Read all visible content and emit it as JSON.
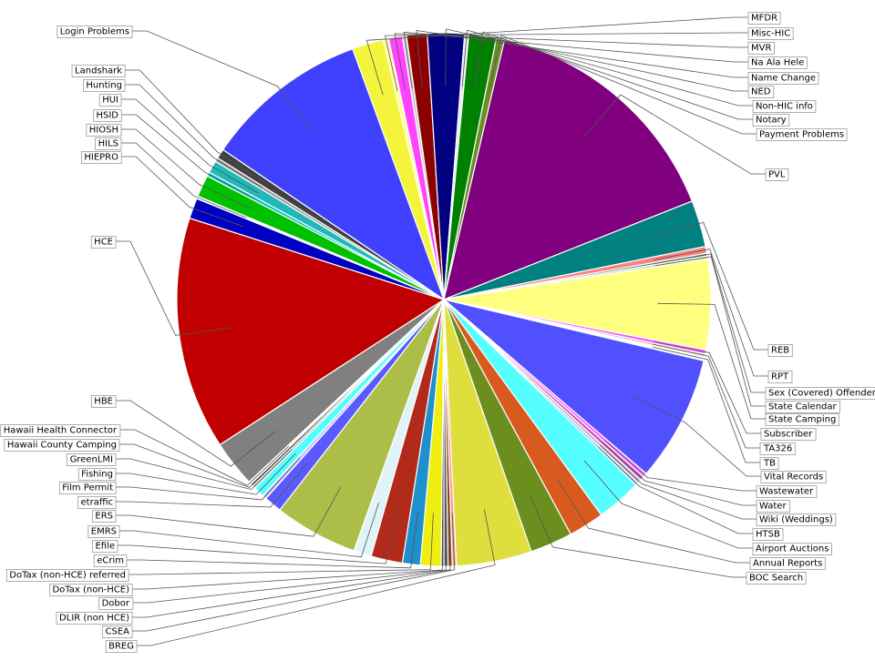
{
  "chart_data": {
    "type": "pie",
    "title": "",
    "start_angle_deg": -20,
    "direction": "clockwise",
    "slices": [
      {
        "label": "MFDR",
        "value": 2.3,
        "color": "#f4f43c"
      },
      {
        "label": "Misc-HIC",
        "value": 0.4,
        "color": "#ffff99"
      },
      {
        "label": "MVR",
        "value": 1.0,
        "color": "#ff44ff"
      },
      {
        "label": "Na Ala Hele",
        "value": 0.3,
        "color": "#cccccc"
      },
      {
        "label": "Name Change",
        "value": 1.5,
        "color": "#8b0000"
      },
      {
        "label": "NED",
        "value": 2.7,
        "color": "#000080"
      },
      {
        "label": "Non-HIC info",
        "value": 0.3,
        "color": "#e8e8e8"
      },
      {
        "label": "Notary",
        "value": 2.0,
        "color": "#008000"
      },
      {
        "label": "Payment Problems",
        "value": 0.6,
        "color": "#6b8e23"
      },
      {
        "label": "PVL",
        "value": 18.5,
        "color": "#800080"
      },
      {
        "label": "REB",
        "value": 3.4,
        "color": "#008080"
      },
      {
        "label": "RPT",
        "value": 0.5,
        "color": "#ff7f7f"
      },
      {
        "label": "Sex (Covered) Offender",
        "value": 0.2,
        "color": "#2e8b57"
      },
      {
        "label": "State Calendar",
        "value": 0.2,
        "color": "#cccccc"
      },
      {
        "label": "State Camping",
        "value": 6.6,
        "color": "#ffff80"
      },
      {
        "label": "Subscriber",
        "value": 0.3,
        "color": "#ff55ff"
      },
      {
        "label": "TA326",
        "value": 0.2,
        "color": "#bbbbbb"
      },
      {
        "label": "TB",
        "value": 0.3,
        "color": "#ffffff"
      },
      {
        "label": "Vital Records",
        "value": 9.2,
        "color": "#5050ff"
      },
      {
        "label": "Wastewater",
        "value": 0.3,
        "color": "#ff66ff"
      },
      {
        "label": "Water",
        "value": 0.3,
        "color": "#cc44cc"
      },
      {
        "label": "Wiki (Weddings)",
        "value": 0.3,
        "color": "#bfbfbf"
      },
      {
        "label": "HTSB",
        "value": 0.2,
        "color": "#a0a0ff"
      },
      {
        "label": "Airport Auctions",
        "value": 3.3,
        "color": "#55ffff"
      },
      {
        "label": "Annual Reports",
        "value": 2.6,
        "color": "#d95a1f"
      },
      {
        "label": "BOC Search",
        "value": 3.1,
        "color": "#6b8e1f"
      },
      {
        "label": "BREG",
        "value": 5.5,
        "color": "#dede3c"
      },
      {
        "label": "CSEA",
        "value": 0.3,
        "color": "#ff9999"
      },
      {
        "label": "DLIR (non HCE)",
        "value": 0.3,
        "color": "#8b4513"
      },
      {
        "label": "Dobor",
        "value": 0.3,
        "color": "#555555"
      },
      {
        "label": "DoTax (non-HCE)",
        "value": 0.2,
        "color": "#2e2e2e"
      },
      {
        "label": "DoTax (non-HCE) referred",
        "value": 1.5,
        "color": "#eeee11"
      },
      {
        "label": "eCrim",
        "value": 1.3,
        "color": "#1e90cc"
      },
      {
        "label": "Efile",
        "value": 2.3,
        "color": "#b22a1a"
      },
      {
        "label": "EMRS",
        "value": 1.3,
        "color": "#e0f4f8"
      },
      {
        "label": "ERS",
        "value": 6.1,
        "color": "#adbe48"
      },
      {
        "label": "etraffic",
        "value": 1.3,
        "color": "#5a5aff"
      },
      {
        "label": "Film Permit",
        "value": 0.3,
        "color": "#c0c0ff"
      },
      {
        "label": "Fishing",
        "value": 0.8,
        "color": "#55ffff"
      },
      {
        "label": "GreenLMI",
        "value": 0.2,
        "color": "#aaaaaa"
      },
      {
        "label": "Hawaii County Camping",
        "value": 0.2,
        "color": "#333333"
      },
      {
        "label": "Hawaii Health Connector",
        "value": 0.2,
        "color": "#ffffff"
      },
      {
        "label": "HBE",
        "value": 3.4,
        "color": "#808080"
      },
      {
        "label": "HCE",
        "value": 17.0,
        "color": "#c00000"
      },
      {
        "label": "HIEPRO",
        "value": 1.5,
        "color": "#0000c0"
      },
      {
        "label": "HILS",
        "value": 0.2,
        "color": "#ffffff"
      },
      {
        "label": "HIOSH",
        "value": 1.6,
        "color": "#00c000"
      },
      {
        "label": "HSID",
        "value": 0.3,
        "color": "#00c0c0"
      },
      {
        "label": "HUI",
        "value": 0.9,
        "color": "#20b8b8"
      },
      {
        "label": "Hunting",
        "value": 0.3,
        "color": "#999999"
      },
      {
        "label": "Landshark",
        "value": 0.7,
        "color": "#404040"
      },
      {
        "label": "Login Problems",
        "value": 12.0,
        "color": "#4040ff"
      }
    ],
    "legend": "none"
  }
}
